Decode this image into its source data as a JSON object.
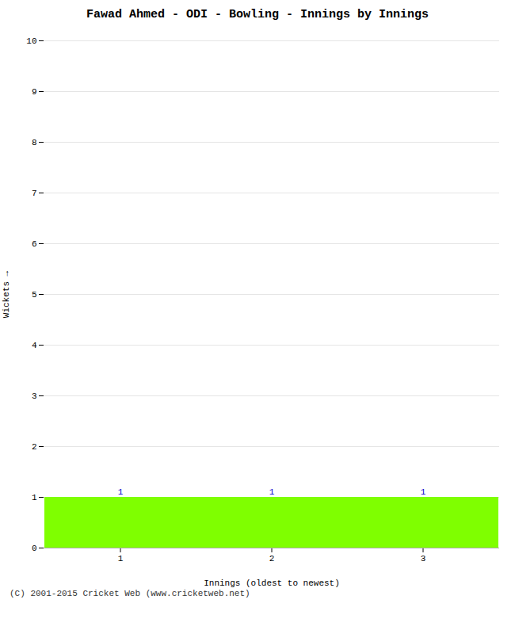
{
  "chart_data": {
    "type": "bar",
    "title": "Fawad Ahmed - ODI - Bowling - Innings by Innings",
    "xlabel": "Innings (oldest to newest)",
    "ylabel": "Wickets",
    "categories": [
      "1",
      "2",
      "3"
    ],
    "values": [
      1,
      1,
      1
    ],
    "color": "#7fff00",
    "ylim": [
      0,
      10
    ],
    "yticks": [
      0,
      1,
      2,
      3,
      4,
      5,
      6,
      7,
      8,
      9,
      10
    ],
    "grid": true,
    "data_labels": true,
    "caption": "(C) 2001-2015 Cricket Web (www.cricketweb.net)"
  }
}
